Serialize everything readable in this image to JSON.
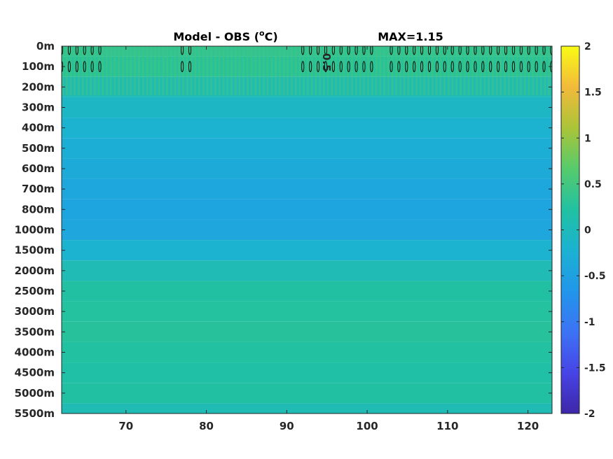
{
  "chart_data": {
    "type": "heatmap",
    "title": "Model - OBS (°C)",
    "title_left": "Model - OBS (",
    "title_sup": "o",
    "title_right": "C)",
    "max_label": "MAX=1.15",
    "xlim": [
      62,
      123
    ],
    "x_ticks": [
      70,
      80,
      90,
      100,
      110,
      120
    ],
    "y_tick_labels": [
      "0m",
      "100m",
      "200m",
      "300m",
      "400m",
      "500m",
      "600m",
      "700m",
      "800m",
      "1000m",
      "1500m",
      "2000m",
      "2500m",
      "3000m",
      "3500m",
      "4000m",
      "4500m",
      "5000m",
      "5500m"
    ],
    "colorbar": {
      "limits": [
        -2,
        2
      ],
      "tick_labels": [
        "2",
        "1.5",
        "1",
        "0.5",
        "0",
        "-0.5",
        "-1",
        "-1.5",
        "-2"
      ],
      "colormap": "parula",
      "stops": [
        "#3e26a8",
        "#4744e6",
        "#3c73f5",
        "#2196ea",
        "#1bb2d2",
        "#21c1a1",
        "#57cb6c",
        "#abc438",
        "#f2ba3a",
        "#f9fb15"
      ]
    },
    "depth_profile": [
      {
        "level": 0,
        "value": 0.35
      },
      {
        "level": 1,
        "value": 0.28
      },
      {
        "level": 2,
        "value": 0.05
      },
      {
        "level": 3,
        "value": -0.1
      },
      {
        "level": 4,
        "value": -0.2
      },
      {
        "level": 5,
        "value": -0.28
      },
      {
        "level": 6,
        "value": -0.35
      },
      {
        "level": 7,
        "value": -0.4
      },
      {
        "level": 8,
        "value": -0.45
      },
      {
        "level": 9,
        "value": -0.42
      },
      {
        "level": 10,
        "value": -0.2
      },
      {
        "level": 11,
        "value": 0.05
      },
      {
        "level": 12,
        "value": 0.2
      },
      {
        "level": 13,
        "value": 0.25
      },
      {
        "level": 14,
        "value": 0.27
      },
      {
        "level": 15,
        "value": 0.22
      },
      {
        "level": 16,
        "value": 0.18
      },
      {
        "level": 17,
        "value": 0.2
      },
      {
        "level": 18,
        "value": 0.05
      }
    ],
    "contour_level": 0.5,
    "contour_label": "0.5",
    "contour_label_x": 94.5,
    "contour_label_level": 0.8,
    "contour_band_levels": [
      0,
      1
    ],
    "contour_x_ranges": [
      [
        62,
        67
      ],
      [
        77,
        78
      ],
      [
        92,
        101
      ],
      [
        103,
        123
      ]
    ],
    "grid": false
  }
}
